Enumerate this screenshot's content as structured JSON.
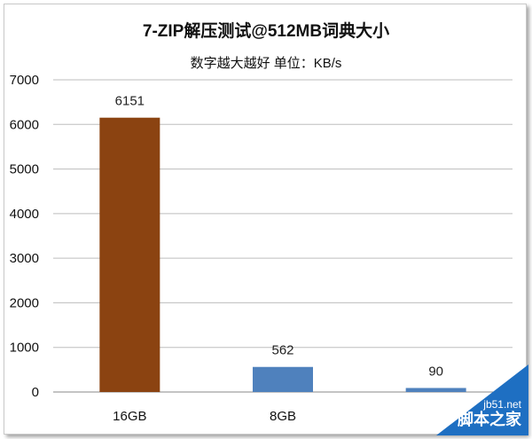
{
  "chart_data": {
    "type": "bar",
    "title": "7-ZIP解压测试@512MB词典大小",
    "subtitle": "数字越大越好 单位：KB/s",
    "categories": [
      "16GB",
      "8GB",
      ""
    ],
    "values": [
      6151,
      562,
      90
    ],
    "bar_colors": [
      "#8b4311",
      "#4f81bd",
      "#4f81bd"
    ],
    "data_labels": [
      "6151",
      "562",
      "90"
    ],
    "ylim": [
      0,
      7000
    ],
    "yticks": [
      "0",
      "1000",
      "2000",
      "3000",
      "4000",
      "5000",
      "6000",
      "7000"
    ],
    "grid": true,
    "legend": "none"
  },
  "watermark": {
    "url": "jb51.net",
    "name": "脚本之家"
  }
}
